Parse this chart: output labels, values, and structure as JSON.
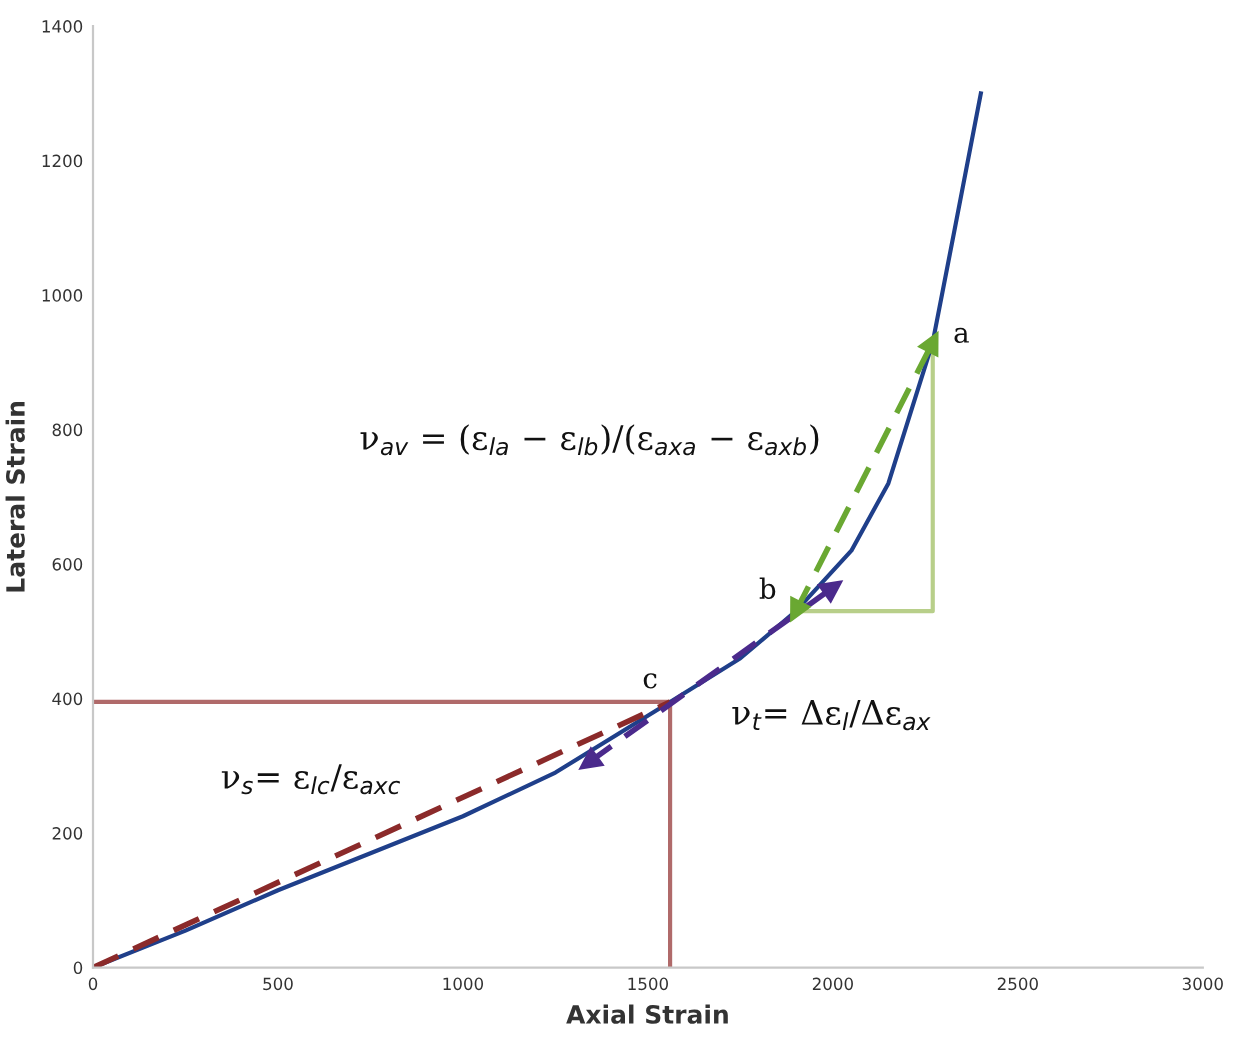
{
  "chart_data": {
    "type": "line",
    "xlabel": "Axial Strain",
    "ylabel": "Lateral Strain",
    "xlim": [
      0,
      3000
    ],
    "ylim": [
      0,
      1400
    ],
    "xticks": [
      0,
      500,
      1000,
      1500,
      2000,
      2500,
      3000
    ],
    "yticks": [
      0,
      200,
      400,
      600,
      800,
      1000,
      1200,
      1400
    ],
    "grid": false,
    "legend": false,
    "series": [
      {
        "color": "#b06a6a",
        "x": [
          0,
          1560,
          1560
        ],
        "values": [
          395,
          395,
          0
        ],
        "line_style": "solid",
        "marker": "none"
      },
      {
        "color": "#b8cf8a",
        "x": [
          1900,
          2270,
          2270
        ],
        "values": [
          530,
          530,
          930
        ],
        "line_style": "solid",
        "marker": "none"
      },
      {
        "color": "#1f3f8a",
        "x": [
          0,
          250,
          500,
          750,
          1000,
          1250,
          1560,
          1750,
          1900,
          2050,
          2150,
          2270,
          2330,
          2400
        ],
        "values": [
          0,
          55,
          115,
          170,
          225,
          290,
          395,
          460,
          530,
          620,
          720,
          930,
          1100,
          1300
        ],
        "line_style": "solid",
        "marker": "none"
      },
      {
        "color": "#8b2a2a",
        "x": [
          0,
          1560
        ],
        "values": [
          0,
          395
        ],
        "line_style": "dashed",
        "marker": "none"
      },
      {
        "color": "#4b2a8c",
        "x": [
          1340,
          2000
        ],
        "values": [
          305,
          565
        ],
        "line_style": "dashed",
        "marker": "triangle"
      },
      {
        "color": "#6aa832",
        "x": [
          1900,
          2270
        ],
        "values": [
          530,
          930
        ],
        "line_style": "dashed",
        "marker": "triangle"
      }
    ],
    "annotations": [
      "a",
      "b",
      "c",
      "ν$_{av}$ = (ε$_{la}$ − ε$_{lb}$)/(ε$_{axa}$ − ε$_{axb}$)",
      "ν$_{t}$= Δε$_{l}$/Δε$_{ax}$",
      "ν$_{s}$= ε$_{lc}$/ε$_{axc}$"
    ]
  }
}
